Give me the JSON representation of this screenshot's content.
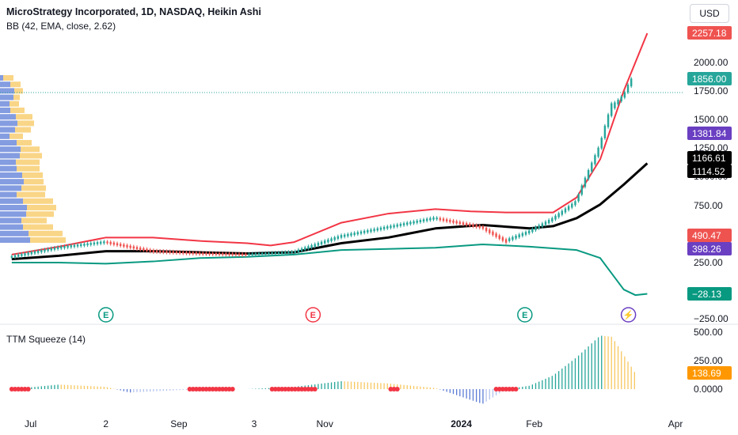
{
  "header": {
    "title_symbol": "MicroStrategy Incorporated, 1D, NASDAQ, Heikin Ashi",
    "indicator": "BB (42, EMA, close, 2.62)",
    "currency": "USD"
  },
  "lower_pane": {
    "title": "TTM Squeeze (14)"
  },
  "colors": {
    "up": "#26a69a",
    "down": "#ef5350",
    "bb_upper": "#f23645",
    "bb_lower": "#089981",
    "basis": "#000000",
    "step": "#6a3fc2",
    "volume_up": "#5b7bd5",
    "volume_down": "#f7c75f"
  },
  "chart_data": [
    {
      "type": "line",
      "title": "MicroStrategy Incorporated, 1D, NASDAQ, Heikin Ashi",
      "y_axis_ticks": [
        2000.0,
        1750.0,
        1500.0,
        1250.0,
        1000.0,
        750.0,
        250.0,
        -250.0
      ],
      "y_axis_tick_labels": [
        "2000.00",
        "1750.00",
        "1500.00",
        "1250.00",
        "1000.00",
        "750.00",
        "250.00",
        "−250.00"
      ],
      "x_axis_tick_labels": [
        "Jul",
        "2",
        "Sep",
        "3",
        "Nov",
        "2024",
        "Feb",
        "Apr"
      ],
      "x_axis_tick_days": [
        8,
        40,
        71,
        103,
        133,
        191,
        222,
        282
      ],
      "x_range_days": [
        -5,
        285
      ],
      "ylim": [
        -250,
        2250
      ],
      "price_labels": [
        {
          "value": 2257.18,
          "label": "2257.18",
          "series": "bb_upper"
        },
        {
          "value": 1856.0,
          "label": "1856.00",
          "series": "last_price"
        },
        {
          "value": 1381.84,
          "label": "1381.84",
          "series": "step_line"
        },
        {
          "value": 1166.61,
          "label": "1166.61",
          "series": "basis"
        },
        {
          "value": 1114.52,
          "label": "1114.52",
          "series": "basis_alt"
        },
        {
          "value": 490.47,
          "label": "490.47",
          "series": "thin_red"
        },
        {
          "value": 398.26,
          "label": "398.26",
          "series": "step_line_low"
        },
        {
          "value": -28.13,
          "label": "−28.13",
          "series": "bb_lower"
        }
      ],
      "event_markers": [
        {
          "day": 40,
          "letter": "E",
          "color": "#089981"
        },
        {
          "day": 128,
          "letter": "E",
          "color": "#f23645"
        },
        {
          "day": 218,
          "letter": "E",
          "color": "#089981"
        },
        {
          "day": 262,
          "letter": "⚡",
          "color": "#6a3fc2"
        }
      ],
      "series": [
        {
          "key": "price",
          "x": [
            0,
            20,
            40,
            60,
            80,
            100,
            120,
            140,
            160,
            180,
            200,
            210,
            220,
            230,
            240,
            250,
            255,
            260,
            264
          ],
          "values": [
            300,
            380,
            430,
            350,
            330,
            320,
            340,
            480,
            560,
            640,
            560,
            440,
            520,
            630,
            780,
            1250,
            1600,
            1700,
            1856
          ]
        },
        {
          "key": "bb_upper",
          "x": [
            0,
            20,
            40,
            60,
            80,
            100,
            110,
            120,
            140,
            160,
            180,
            195,
            210,
            230,
            240,
            250,
            260,
            270
          ],
          "values": [
            320,
            390,
            470,
            470,
            440,
            420,
            400,
            430,
            600,
            680,
            720,
            700,
            690,
            690,
            820,
            1150,
            1750,
            2257.18
          ]
        },
        {
          "key": "basis",
          "x": [
            0,
            20,
            40,
            60,
            80,
            100,
            120,
            140,
            160,
            180,
            200,
            220,
            230,
            240,
            250,
            260,
            270
          ],
          "values": [
            280,
            310,
            350,
            350,
            340,
            330,
            340,
            420,
            470,
            550,
            580,
            550,
            570,
            640,
            760,
            930,
            1114.52
          ]
        },
        {
          "key": "bb_lower",
          "x": [
            0,
            20,
            40,
            60,
            80,
            100,
            120,
            140,
            160,
            180,
            200,
            210,
            220,
            240,
            250,
            255,
            260,
            265,
            270
          ],
          "values": [
            250,
            250,
            240,
            260,
            290,
            300,
            320,
            360,
            370,
            380,
            410,
            400,
            390,
            360,
            290,
            150,
            10,
            -40,
            -28.13
          ]
        }
      ]
    },
    {
      "type": "bar",
      "title": "TTM Squeeze (14)",
      "y_axis_ticks": [
        500.0,
        250.0,
        0.0
      ],
      "y_axis_tick_labels": [
        "500.00",
        "250.00",
        "0.0000"
      ],
      "last_value_label": "138.69",
      "ylim": [
        -180,
        520
      ],
      "x": [
        0,
        20,
        40,
        50,
        60,
        80,
        100,
        120,
        140,
        160,
        180,
        190,
        200,
        210,
        220,
        230,
        240,
        250,
        255,
        260,
        265
      ],
      "values": [
        0,
        40,
        20,
        -30,
        -20,
        0,
        0,
        20,
        70,
        50,
        10,
        -60,
        -130,
        0,
        30,
        120,
        280,
        470,
        460,
        300,
        138.69
      ]
    }
  ]
}
